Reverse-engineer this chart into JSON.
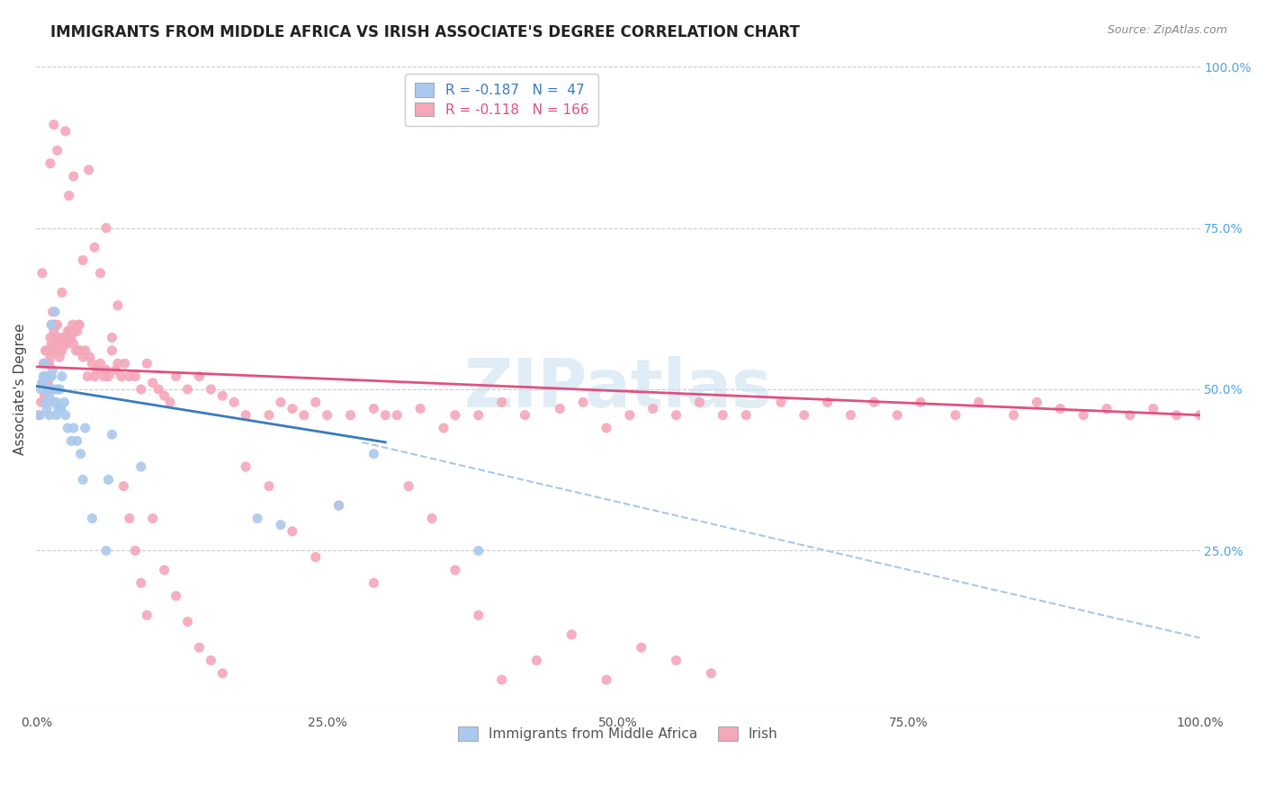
{
  "title": "IMMIGRANTS FROM MIDDLE AFRICA VS IRISH ASSOCIATE'S DEGREE CORRELATION CHART",
  "source": "Source: ZipAtlas.com",
  "ylabel": "Associate's Degree",
  "xlim": [
    0.0,
    1.0
  ],
  "ylim": [
    0.0,
    1.0
  ],
  "legend_blue_r": "R = -0.187",
  "legend_blue_n": "N =  47",
  "legend_pink_r": "R = -0.118",
  "legend_pink_n": "N = 166",
  "blue_scatter_color": "#aac9ee",
  "pink_scatter_color": "#f4a7b9",
  "blue_line_color": "#3a7bbf",
  "pink_line_color": "#e05080",
  "dash_line_color": "#a8c8e8",
  "watermark": "ZIPatlas",
  "background_color": "#ffffff",
  "grid_color": "#cccccc",
  "blue_points_x": [
    0.003,
    0.004,
    0.005,
    0.006,
    0.007,
    0.007,
    0.008,
    0.009,
    0.009,
    0.01,
    0.01,
    0.011,
    0.011,
    0.012,
    0.012,
    0.013,
    0.013,
    0.014,
    0.015,
    0.015,
    0.016,
    0.017,
    0.017,
    0.018,
    0.019,
    0.02,
    0.021,
    0.022,
    0.024,
    0.025,
    0.027,
    0.03,
    0.032,
    0.035,
    0.038,
    0.04,
    0.042,
    0.048,
    0.06,
    0.062,
    0.065,
    0.09,
    0.19,
    0.21,
    0.26,
    0.29,
    0.38
  ],
  "blue_points_y": [
    0.46,
    0.5,
    0.51,
    0.52,
    0.54,
    0.52,
    0.48,
    0.52,
    0.47,
    0.52,
    0.5,
    0.49,
    0.46,
    0.52,
    0.5,
    0.6,
    0.52,
    0.53,
    0.5,
    0.48,
    0.62,
    0.48,
    0.46,
    0.5,
    0.47,
    0.5,
    0.47,
    0.52,
    0.48,
    0.46,
    0.44,
    0.42,
    0.44,
    0.42,
    0.4,
    0.36,
    0.44,
    0.3,
    0.25,
    0.36,
    0.43,
    0.38,
    0.3,
    0.29,
    0.32,
    0.4,
    0.25
  ],
  "pink_points_x": [
    0.002,
    0.004,
    0.005,
    0.006,
    0.007,
    0.007,
    0.008,
    0.009,
    0.01,
    0.01,
    0.011,
    0.011,
    0.012,
    0.012,
    0.013,
    0.013,
    0.014,
    0.015,
    0.015,
    0.016,
    0.016,
    0.017,
    0.017,
    0.018,
    0.018,
    0.019,
    0.019,
    0.02,
    0.021,
    0.022,
    0.023,
    0.024,
    0.025,
    0.026,
    0.027,
    0.028,
    0.029,
    0.03,
    0.031,
    0.032,
    0.033,
    0.034,
    0.035,
    0.036,
    0.037,
    0.038,
    0.04,
    0.042,
    0.044,
    0.046,
    0.048,
    0.05,
    0.052,
    0.055,
    0.058,
    0.06,
    0.062,
    0.065,
    0.068,
    0.07,
    0.073,
    0.076,
    0.08,
    0.085,
    0.09,
    0.095,
    0.1,
    0.105,
    0.11,
    0.115,
    0.12,
    0.13,
    0.14,
    0.15,
    0.16,
    0.17,
    0.18,
    0.2,
    0.21,
    0.22,
    0.23,
    0.24,
    0.25,
    0.27,
    0.29,
    0.3,
    0.31,
    0.33,
    0.35,
    0.36,
    0.38,
    0.4,
    0.42,
    0.45,
    0.47,
    0.49,
    0.51,
    0.53,
    0.55,
    0.57,
    0.59,
    0.61,
    0.64,
    0.66,
    0.68,
    0.7,
    0.72,
    0.74,
    0.76,
    0.79,
    0.81,
    0.84,
    0.86,
    0.88,
    0.9,
    0.92,
    0.94,
    0.96,
    0.98,
    1.0,
    0.005,
    0.008,
    0.012,
    0.015,
    0.018,
    0.022,
    0.025,
    0.028,
    0.032,
    0.036,
    0.04,
    0.045,
    0.05,
    0.055,
    0.06,
    0.065,
    0.07,
    0.075,
    0.08,
    0.085,
    0.09,
    0.095,
    0.1,
    0.11,
    0.12,
    0.13,
    0.14,
    0.15,
    0.16,
    0.18,
    0.2,
    0.22,
    0.24,
    0.26,
    0.29,
    0.32,
    0.34,
    0.36,
    0.38,
    0.4,
    0.43,
    0.46,
    0.49,
    0.52,
    0.55,
    0.58
  ],
  "pink_points_y": [
    0.46,
    0.48,
    0.51,
    0.54,
    0.49,
    0.51,
    0.56,
    0.54,
    0.51,
    0.5,
    0.56,
    0.54,
    0.58,
    0.55,
    0.6,
    0.57,
    0.62,
    0.59,
    0.6,
    0.6,
    0.56,
    0.58,
    0.56,
    0.6,
    0.57,
    0.58,
    0.56,
    0.55,
    0.57,
    0.56,
    0.58,
    0.57,
    0.58,
    0.57,
    0.59,
    0.58,
    0.59,
    0.58,
    0.6,
    0.57,
    0.59,
    0.56,
    0.59,
    0.56,
    0.6,
    0.56,
    0.55,
    0.56,
    0.52,
    0.55,
    0.54,
    0.52,
    0.53,
    0.54,
    0.52,
    0.53,
    0.52,
    0.56,
    0.53,
    0.54,
    0.52,
    0.54,
    0.52,
    0.52,
    0.5,
    0.54,
    0.51,
    0.5,
    0.49,
    0.48,
    0.52,
    0.5,
    0.52,
    0.5,
    0.49,
    0.48,
    0.46,
    0.46,
    0.48,
    0.47,
    0.46,
    0.48,
    0.46,
    0.46,
    0.47,
    0.46,
    0.46,
    0.47,
    0.44,
    0.46,
    0.46,
    0.48,
    0.46,
    0.47,
    0.48,
    0.44,
    0.46,
    0.47,
    0.46,
    0.48,
    0.46,
    0.46,
    0.48,
    0.46,
    0.48,
    0.46,
    0.48,
    0.46,
    0.48,
    0.46,
    0.48,
    0.46,
    0.48,
    0.47,
    0.46,
    0.47,
    0.46,
    0.47,
    0.46,
    0.46,
    0.68,
    0.56,
    0.85,
    0.91,
    0.87,
    0.65,
    0.9,
    0.8,
    0.83,
    0.6,
    0.7,
    0.84,
    0.72,
    0.68,
    0.75,
    0.58,
    0.63,
    0.35,
    0.3,
    0.25,
    0.2,
    0.15,
    0.3,
    0.22,
    0.18,
    0.14,
    0.1,
    0.08,
    0.06,
    0.38,
    0.35,
    0.28,
    0.24,
    0.32,
    0.2,
    0.35,
    0.3,
    0.22,
    0.15,
    0.05,
    0.08,
    0.12,
    0.05,
    0.1,
    0.08,
    0.06
  ],
  "blue_line_x": [
    0.0,
    0.3
  ],
  "blue_line_y": [
    0.505,
    0.418
  ],
  "pink_line_x": [
    0.0,
    1.0
  ],
  "pink_line_y": [
    0.535,
    0.46
  ],
  "dash_line_x": [
    0.28,
    1.0
  ],
  "dash_line_y": [
    0.418,
    0.115
  ]
}
